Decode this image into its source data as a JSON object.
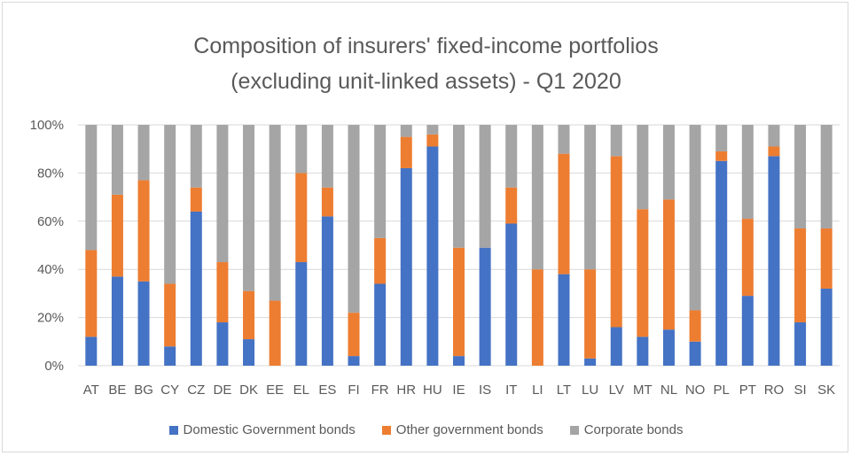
{
  "chart_data": {
    "type": "bar",
    "stacked": true,
    "title": "Composition of insurers' fixed-income portfolios",
    "subtitle": "(excluding unit-linked assets) - Q1 2020",
    "ylim": [
      0,
      100
    ],
    "yticks": [
      "0%",
      "20%",
      "40%",
      "60%",
      "80%",
      "100%"
    ],
    "grid": true,
    "legend_position": "bottom",
    "categories": [
      "AT",
      "BE",
      "BG",
      "CY",
      "CZ",
      "DE",
      "DK",
      "EE",
      "EL",
      "ES",
      "FI",
      "FR",
      "HR",
      "HU",
      "IE",
      "IS",
      "IT",
      "LI",
      "LT",
      "LU",
      "LV",
      "MT",
      "NL",
      "NO",
      "PL",
      "PT",
      "RO",
      "SI",
      "SK"
    ],
    "series": [
      {
        "name": "Domestic Government bonds",
        "color": "#4472c4",
        "values": [
          12,
          37,
          35,
          8,
          64,
          18,
          11,
          0,
          43,
          62,
          4,
          34,
          82,
          91,
          4,
          49,
          59,
          0,
          38,
          3,
          16,
          12,
          15,
          10,
          85,
          29,
          87,
          18,
          32
        ]
      },
      {
        "name": "Other government bonds",
        "color": "#ed7d31",
        "values": [
          36,
          34,
          42,
          26,
          10,
          25,
          20,
          27,
          37,
          12,
          18,
          19,
          13,
          5,
          45,
          0,
          15,
          40,
          50,
          37,
          71,
          53,
          54,
          13,
          4,
          32,
          4,
          39,
          25
        ]
      },
      {
        "name": "Corporate bonds",
        "color": "#a5a5a5",
        "values": [
          52,
          29,
          23,
          66,
          26,
          57,
          69,
          73,
          20,
          26,
          78,
          47,
          5,
          4,
          51,
          51,
          26,
          60,
          12,
          60,
          13,
          35,
          31,
          77,
          11,
          39,
          9,
          43,
          43
        ]
      }
    ]
  }
}
